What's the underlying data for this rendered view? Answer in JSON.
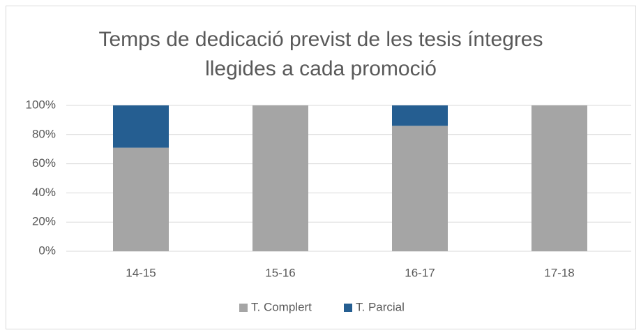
{
  "chart_data": {
    "type": "stacked_bar",
    "title": [
      "Temps de dedicació previst de les tesis íntegres",
      "llegides a cada promoció"
    ],
    "categories": [
      "14-15",
      "15-16",
      "16-17",
      "17-18"
    ],
    "series": [
      {
        "name": "T. Complert",
        "color": "#a5a5a5",
        "values": [
          71,
          100,
          86,
          100
        ]
      },
      {
        "name": "T. Parcial",
        "color": "#255e91",
        "values": [
          29,
          0,
          14,
          0
        ]
      }
    ],
    "ylim": [
      0,
      100
    ],
    "yticks": [
      {
        "value": 0,
        "label": "0%"
      },
      {
        "value": 20,
        "label": "20%"
      },
      {
        "value": 40,
        "label": "40%"
      },
      {
        "value": 60,
        "label": "60%"
      },
      {
        "value": 80,
        "label": "80%"
      },
      {
        "value": 100,
        "label": "100%"
      }
    ],
    "grid": true,
    "legend": "bottom"
  }
}
